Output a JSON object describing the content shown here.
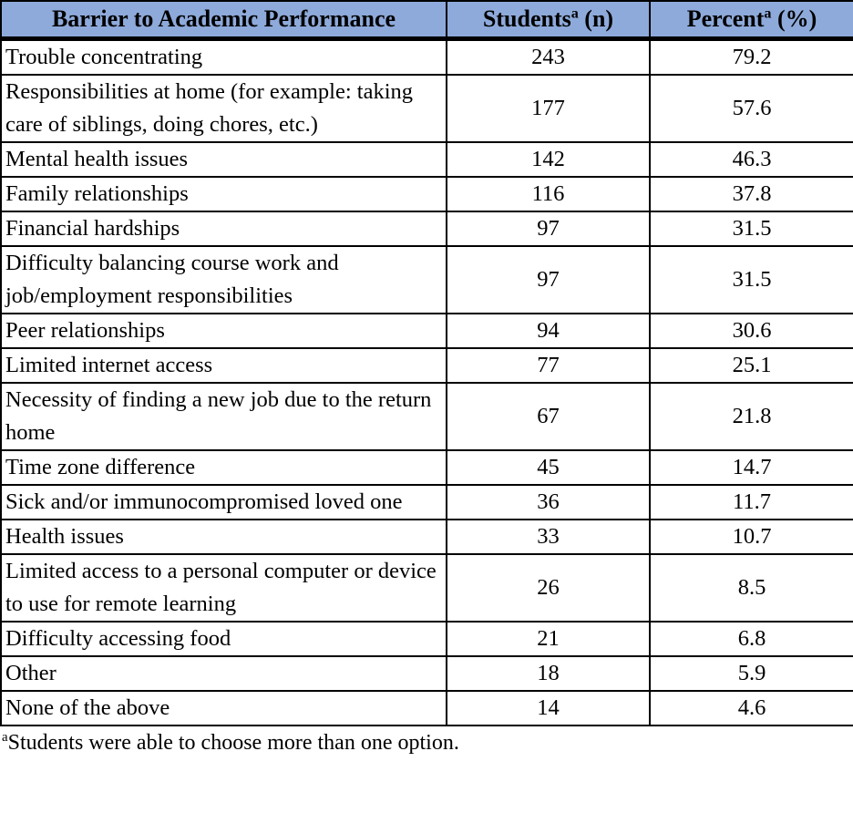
{
  "colors": {
    "header_bg": "#8EAADB",
    "border": "#000000",
    "text": "#000000"
  },
  "table": {
    "headers": {
      "barrier": {
        "text": "Barrier to Academic Performance"
      },
      "students": {
        "text": "Students",
        "sup": "a",
        "suffix": " (n)"
      },
      "percent": {
        "text": "Percent",
        "sup": "a",
        "suffix": " (%)"
      }
    },
    "rows": [
      {
        "barrier": "Trouble concentrating",
        "n": "243",
        "pct": "79.2"
      },
      {
        "barrier": "Responsibilities at home (for example: taking care of siblings, doing chores, etc.)",
        "n": "177",
        "pct": "57.6"
      },
      {
        "barrier": "Mental health issues",
        "n": "142",
        "pct": "46.3"
      },
      {
        "barrier": "Family relationships",
        "n": "116",
        "pct": "37.8"
      },
      {
        "barrier": "Financial hardships",
        "n": "97",
        "pct": "31.5"
      },
      {
        "barrier": "Difficulty balancing course work and job/employment responsibilities",
        "n": "97",
        "pct": "31.5"
      },
      {
        "barrier": "Peer relationships",
        "n": "94",
        "pct": "30.6"
      },
      {
        "barrier": "Limited internet access",
        "n": "77",
        "pct": "25.1"
      },
      {
        "barrier": "Necessity of finding a new job due to the return home",
        "n": "67",
        "pct": "21.8"
      },
      {
        "barrier": "Time zone difference",
        "n": "45",
        "pct": "14.7"
      },
      {
        "barrier": "Sick and/or immunocompromised loved one",
        "n": "36",
        "pct": "11.7"
      },
      {
        "barrier": "Health issues",
        "n": "33",
        "pct": "10.7"
      },
      {
        "barrier": "Limited access to a personal computer or device to use for remote learning",
        "n": "26",
        "pct": "8.5"
      },
      {
        "barrier": "Difficulty accessing food",
        "n": "21",
        "pct": "6.8"
      },
      {
        "barrier": "Other",
        "n": "18",
        "pct": "5.9"
      },
      {
        "barrier": "None of the above",
        "n": "14",
        "pct": "4.6"
      }
    ],
    "footnote": {
      "sup": "a",
      "text": "Students were able to choose more than one option."
    }
  }
}
